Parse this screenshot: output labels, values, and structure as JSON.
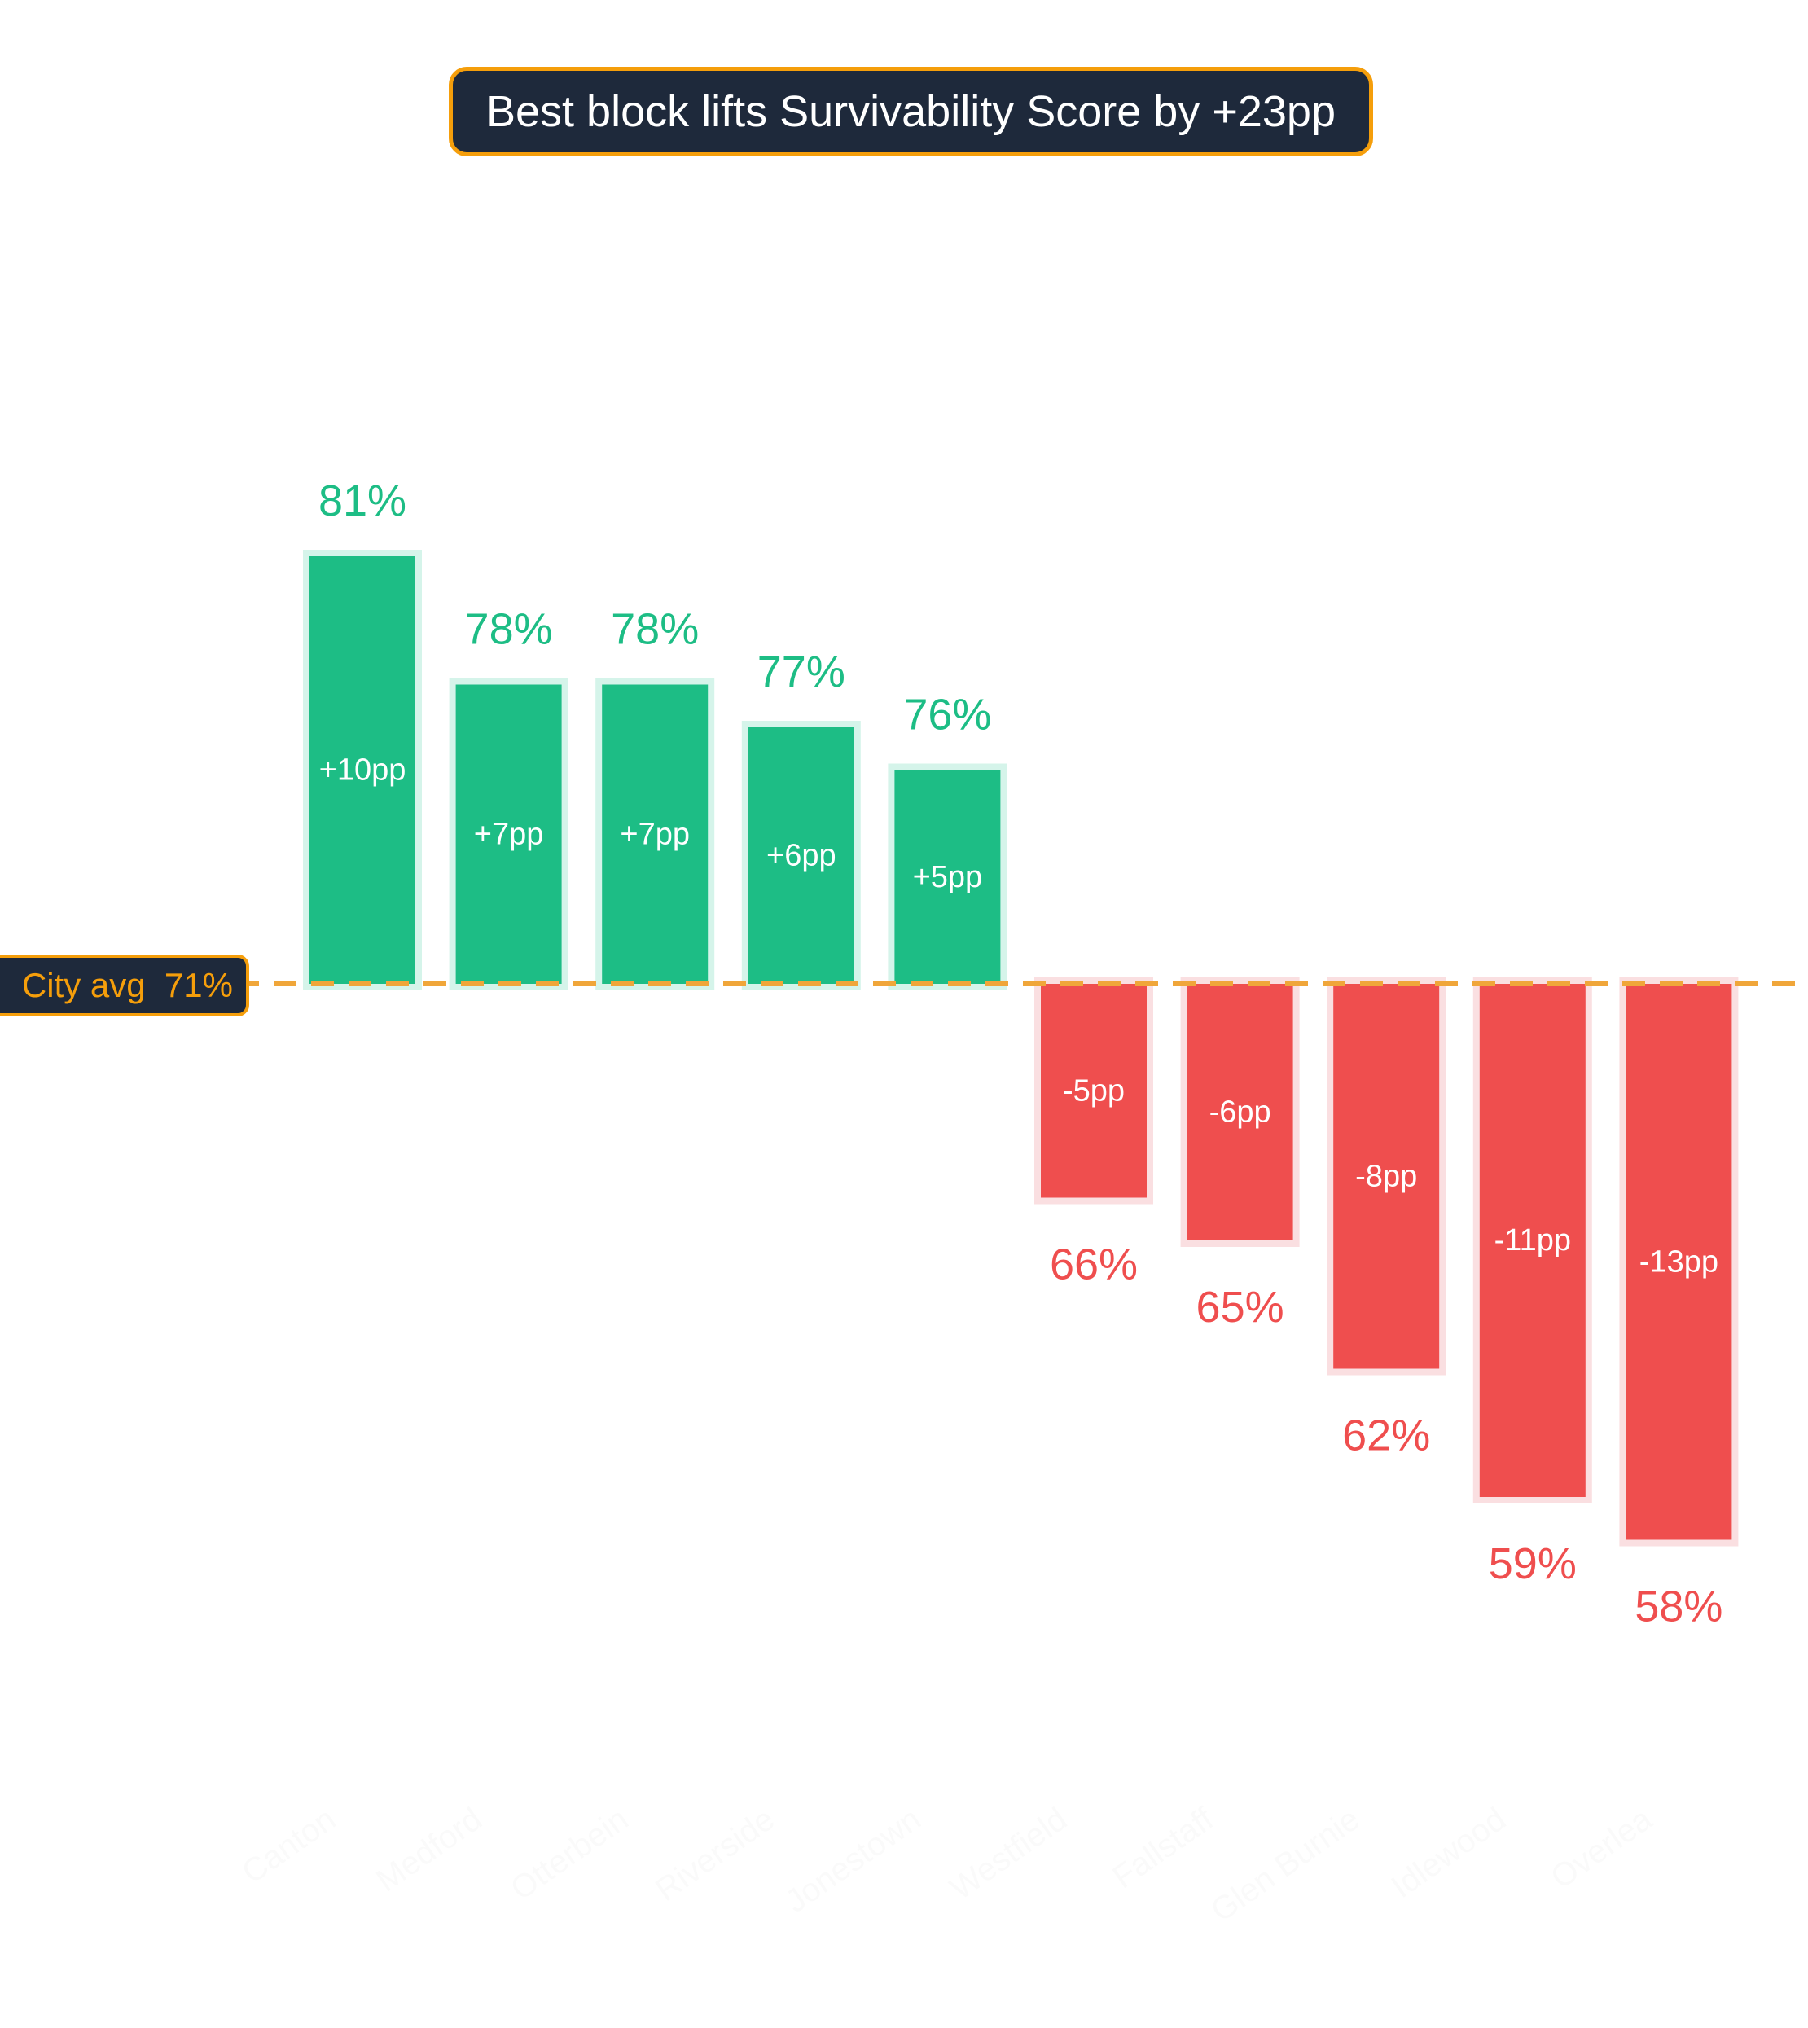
{
  "colors": {
    "positive": "#1dbd85",
    "positive_halo": "#d5f4ea",
    "negative": "#ef4e4e",
    "negative_halo": "#fadfe1",
    "average_line": "#f0a63a",
    "title_bg": "#1e293b",
    "accent": "#f59e0b"
  },
  "chart_data": {
    "type": "bar",
    "title": "Best block lifts Survivability Score by +23pp",
    "baseline": {
      "label": "City avg",
      "value": 71,
      "display": "City avg  71%"
    },
    "categories": [
      "Canton",
      "Medford",
      "Otterbein",
      "Riverside",
      "Jonestown",
      "Westfield",
      "Fallstaff",
      "Glen Burnie",
      "Idlewood",
      "Overlea"
    ],
    "values": [
      81,
      78,
      78,
      77,
      76,
      66,
      65,
      62,
      59,
      58
    ],
    "value_labels": [
      "81%",
      "78%",
      "78%",
      "77%",
      "76%",
      "66%",
      "65%",
      "62%",
      "59%",
      "58%"
    ],
    "deviation_labels": [
      "+10pp",
      "+7pp",
      "+7pp",
      "+6pp",
      "+5pp",
      "-5pp",
      "-6pp",
      "-8pp",
      "-11pp",
      "-13pp"
    ],
    "ylim": [
      50,
      90
    ],
    "grid": false,
    "legend": "none"
  }
}
